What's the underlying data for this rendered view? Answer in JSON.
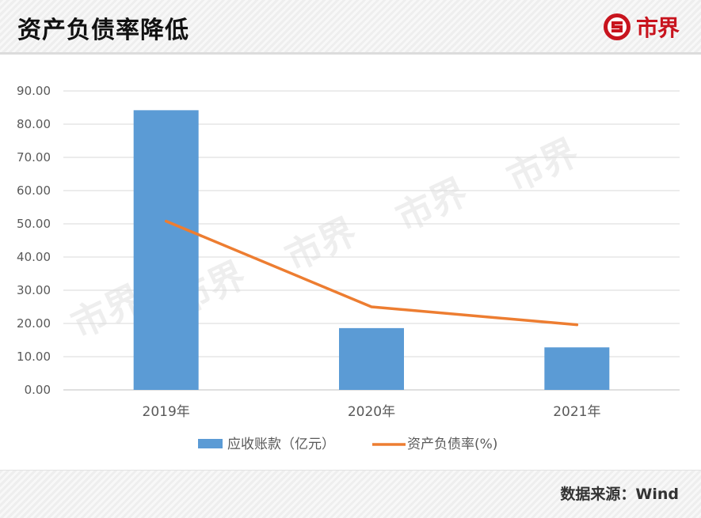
{
  "header": {
    "title": "资产负债率降低",
    "logo_text": "市界",
    "logo_icon": "s-coin-icon"
  },
  "footer": {
    "source": "数据来源：Wind"
  },
  "colors": {
    "bar": "#5b9bd5",
    "line": "#ed7d31",
    "brand": "#c8141e"
  },
  "chart_data": {
    "type": "bar",
    "categories": [
      "2019年",
      "2020年",
      "2021年"
    ],
    "series": [
      {
        "name": "应收账款（亿元）",
        "kind": "bar",
        "values": [
          84.2,
          18.6,
          12.8
        ]
      },
      {
        "name": "资产负债率(%)",
        "kind": "line",
        "values": [
          50.8,
          25.0,
          19.6
        ]
      }
    ],
    "ylim": [
      0,
      90
    ],
    "yticks": [
      "0.00",
      "10.00",
      "20.00",
      "30.00",
      "40.00",
      "50.00",
      "60.00",
      "70.00",
      "80.00",
      "90.00"
    ],
    "grid": true,
    "legend": "bottom",
    "watermark": "市界"
  }
}
